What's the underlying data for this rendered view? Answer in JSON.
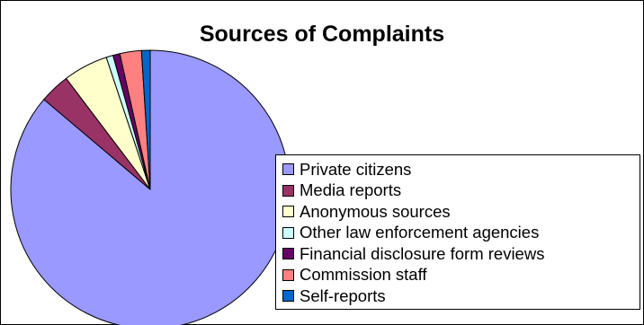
{
  "chart_data": {
    "type": "pie",
    "title": "Sources of Complaints",
    "categories": [
      "Private citizens",
      "Media reports",
      "Anonymous sources",
      "Other law enforcement agencies",
      "Financial disclosure form reviews",
      "Commission staff",
      "Self-reports"
    ],
    "values": [
      86.2,
      3.5,
      5.2,
      0.8,
      0.8,
      2.5,
      1.0
    ],
    "colors": [
      "#9999FF",
      "#993366",
      "#FFFFCC",
      "#CCFFFF",
      "#660066",
      "#FF8080",
      "#0066CC"
    ],
    "legend_position": "right",
    "start_angle_deg": 0,
    "direction": "clockwise"
  }
}
